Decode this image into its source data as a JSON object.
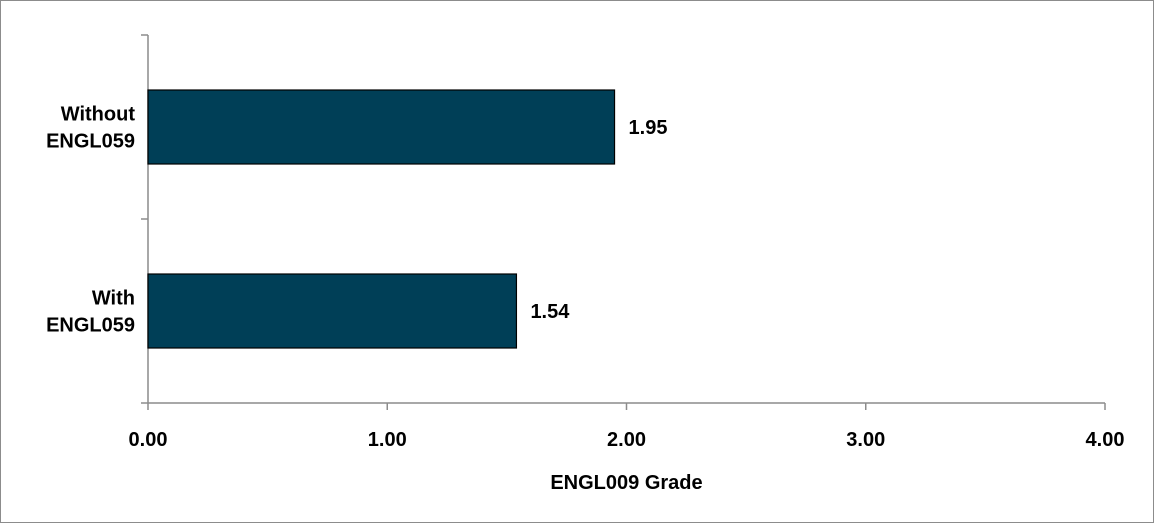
{
  "chart_data": {
    "type": "bar",
    "orientation": "horizontal",
    "categories": [
      "Without ENGL059",
      "With ENGL059"
    ],
    "category_lines": [
      [
        "Without",
        "ENGL059"
      ],
      [
        "With",
        "ENGL059"
      ]
    ],
    "values": [
      1.95,
      1.54
    ],
    "data_labels": [
      "1.95",
      "1.54"
    ],
    "xlabel": "ENGL009 Grade",
    "ylabel": "",
    "title": "",
    "xlim": [
      0,
      4
    ],
    "x_ticks": [
      0,
      1,
      2,
      3,
      4
    ],
    "x_tick_labels": [
      "0.00",
      "1.00",
      "2.00",
      "3.00",
      "4.00"
    ],
    "grid": false,
    "legend": "none",
    "bar_color": "#003f57"
  }
}
